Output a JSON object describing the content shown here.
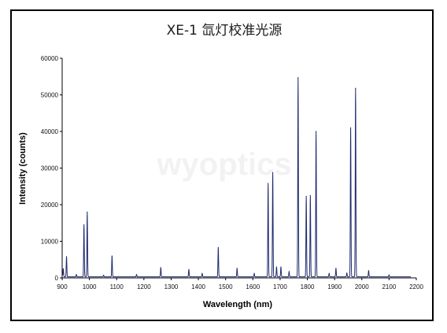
{
  "watermark": "wyoptics",
  "chart_data": {
    "type": "line",
    "title": "XE-1 氙灯校准光源",
    "xlabel": "Wavelength (nm)",
    "ylabel": "Intensity (counts)",
    "xlim": [
      900,
      2200
    ],
    "ylim": [
      0,
      60000
    ],
    "xticks": [
      900,
      1000,
      1100,
      1200,
      1300,
      1400,
      1500,
      1600,
      1700,
      1800,
      1900,
      2000,
      2100,
      2200
    ],
    "yticks": [
      0,
      10000,
      20000,
      30000,
      40000,
      50000,
      60000
    ],
    "grid": false,
    "legend": "none",
    "line_color": "#1f2a6e",
    "baseline": 300,
    "peaks": [
      {
        "x": 904,
        "y": 2500
      },
      {
        "x": 916,
        "y": 5800
      },
      {
        "x": 952,
        "y": 900
      },
      {
        "x": 980,
        "y": 14500
      },
      {
        "x": 992,
        "y": 18000
      },
      {
        "x": 1052,
        "y": 700
      },
      {
        "x": 1083,
        "y": 6000
      },
      {
        "x": 1173,
        "y": 900
      },
      {
        "x": 1262,
        "y": 2800
      },
      {
        "x": 1365,
        "y": 2300
      },
      {
        "x": 1414,
        "y": 1200
      },
      {
        "x": 1473,
        "y": 8300
      },
      {
        "x": 1542,
        "y": 2600
      },
      {
        "x": 1605,
        "y": 1200
      },
      {
        "x": 1656,
        "y": 25800
      },
      {
        "x": 1673,
        "y": 28800
      },
      {
        "x": 1687,
        "y": 3000
      },
      {
        "x": 1703,
        "y": 3000
      },
      {
        "x": 1733,
        "y": 1700
      },
      {
        "x": 1766,
        "y": 54700
      },
      {
        "x": 1796,
        "y": 22300
      },
      {
        "x": 1811,
        "y": 22500
      },
      {
        "x": 1832,
        "y": 40000
      },
      {
        "x": 1880,
        "y": 1200
      },
      {
        "x": 1905,
        "y": 2600
      },
      {
        "x": 1945,
        "y": 1300
      },
      {
        "x": 1959,
        "y": 41000
      },
      {
        "x": 1977,
        "y": 51800
      },
      {
        "x": 2025,
        "y": 2000
      },
      {
        "x": 2100,
        "y": 800
      }
    ]
  }
}
